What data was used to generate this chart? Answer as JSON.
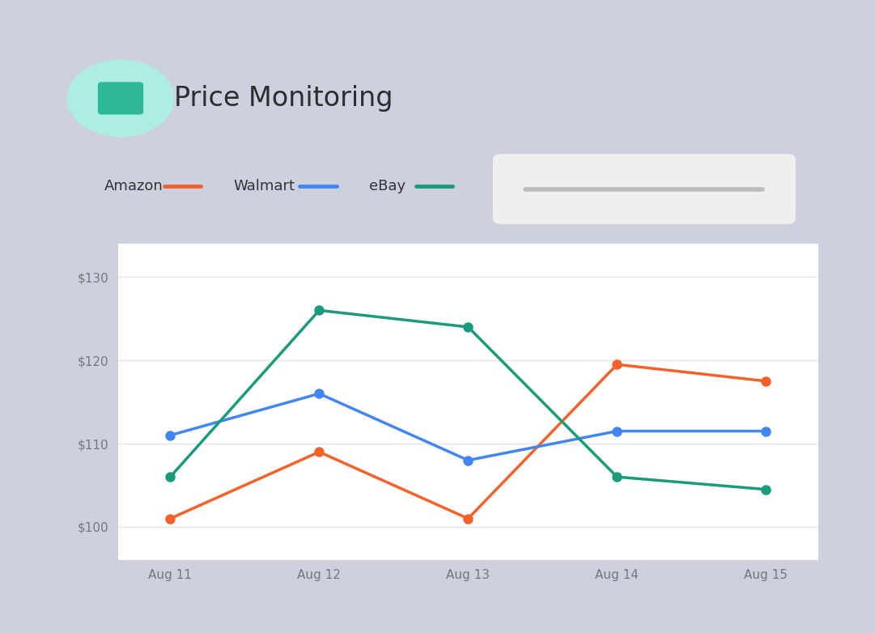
{
  "title": "Price Monitoring",
  "days": [
    "Aug 11",
    "Aug 12",
    "Aug 13",
    "Aug 14",
    "Aug 15"
  ],
  "amazon": [
    101,
    109,
    101,
    119.5,
    117.5
  ],
  "walmart": [
    111,
    116,
    108,
    111.5,
    111.5
  ],
  "ebay": [
    106,
    126,
    124,
    106,
    104.5
  ],
  "amazon_color": "#F4622A",
  "walmart_color": "#4285F4",
  "ebay_color": "#1A9B7B",
  "y_ticks": [
    100,
    110,
    120,
    130
  ],
  "y_labels": [
    "$100",
    "$110",
    "$120",
    "$130"
  ],
  "ylim": [
    96,
    134
  ],
  "background_color": "#FFFFFF",
  "outer_bg": "#CDD0DE",
  "icon_bg": "#AEEEE0",
  "icon_color": "#2DB89A",
  "title_fontsize": 24,
  "legend_fontsize": 13,
  "axis_fontsize": 11,
  "line_width": 2.5,
  "marker_size": 9,
  "slider_bg": "#EFEFEF",
  "slider_line": "#BBBBBB",
  "card_bg": "#FFFFFF"
}
